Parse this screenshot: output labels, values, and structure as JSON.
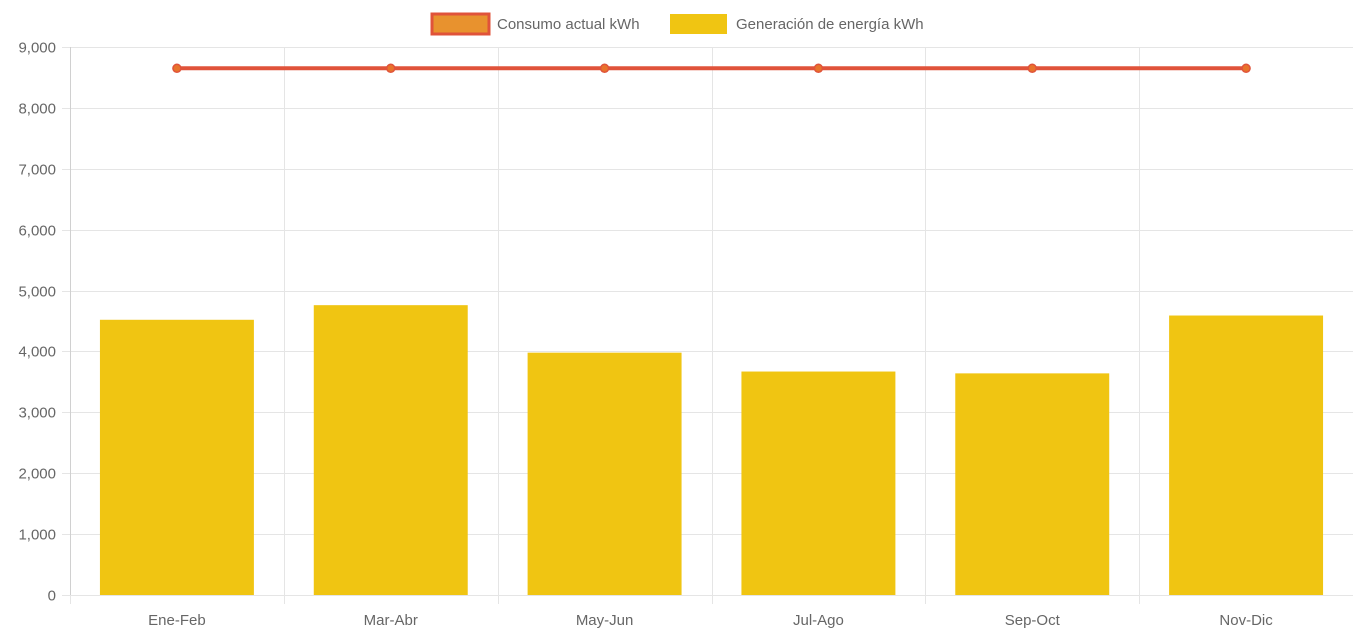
{
  "chart_data": {
    "type": "bar",
    "categories": [
      "Ene-Feb",
      "Mar-Abr",
      "May-Jun",
      "Jul-Ago",
      "Sep-Oct",
      "Nov-Dic"
    ],
    "series": [
      {
        "name": "Consumo actual kWh",
        "type": "line",
        "values": [
          8650,
          8650,
          8650,
          8650,
          8650,
          8650
        ],
        "color": "#e0533a",
        "point_color": "#e8732b"
      },
      {
        "name": "Generación de energía kWh",
        "type": "bar",
        "values": [
          4520,
          4760,
          3980,
          3670,
          3640,
          4590
        ],
        "color": "#f0c512"
      }
    ],
    "ylim": [
      0,
      9000
    ],
    "yticks": [
      0,
      1000,
      2000,
      3000,
      4000,
      5000,
      6000,
      7000,
      8000,
      9000
    ],
    "ytick_labels": [
      "0",
      "1,000",
      "2,000",
      "3,000",
      "4,000",
      "5,000",
      "6,000",
      "7,000",
      "8,000",
      "9,000"
    ],
    "title": "",
    "xlabel": "",
    "ylabel": "",
    "grid": true,
    "legend_position": "top-center"
  }
}
